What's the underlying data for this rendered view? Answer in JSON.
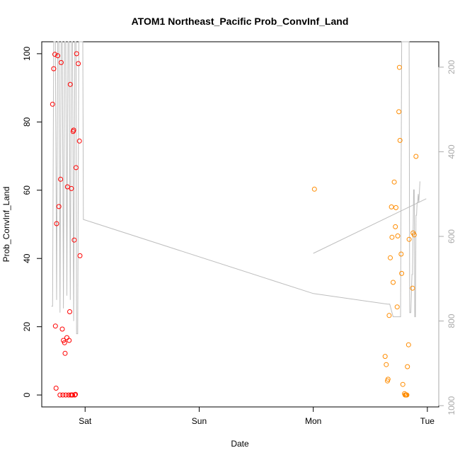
{
  "chart_data": {
    "type": "scatter",
    "title": "ATOM1 Northeast_Pacific Prob_ConvInf_Land",
    "xlabel": "Date",
    "ylabel": "Prob_ConvInf_Land",
    "x_ticks": [
      {
        "label": "Sat",
        "value": 1.0
      },
      {
        "label": "Sun",
        "value": 2.0
      },
      {
        "label": "Mon",
        "value": 3.0
      },
      {
        "label": "Tue",
        "value": 4.0
      }
    ],
    "xlim": [
      0.62,
      4.1
    ],
    "ylim": [
      -3.5,
      103.5
    ],
    "y_ticks": [
      0,
      20,
      40,
      60,
      80,
      100
    ],
    "y2_axis": {
      "ticks": [
        200,
        400,
        600,
        800,
        1000
      ],
      "lim": [
        1003,
        140
      ],
      "color": "#aaaaaa"
    },
    "grid": false,
    "colors": {
      "series_a": "#ff0000",
      "series_b": "#ff8c00",
      "line": "#bebebe"
    },
    "series": [
      {
        "color": "#ff0000",
        "points": [
          [
            0.715,
            85.2
          ],
          [
            0.725,
            95.6
          ],
          [
            0.735,
            99.8
          ],
          [
            0.74,
            20.2
          ],
          [
            0.745,
            2.0
          ],
          [
            0.75,
            50.2
          ],
          [
            0.76,
            99.4
          ],
          [
            0.77,
            55.2
          ],
          [
            0.78,
            0.0
          ],
          [
            0.785,
            63.2
          ],
          [
            0.79,
            97.4
          ],
          [
            0.8,
            19.3
          ],
          [
            0.805,
            0.0
          ],
          [
            0.81,
            16.0
          ],
          [
            0.82,
            15.3
          ],
          [
            0.825,
            12.2
          ],
          [
            0.83,
            0.0
          ],
          [
            0.84,
            16.8
          ],
          [
            0.845,
            61.0
          ],
          [
            0.855,
            0.0
          ],
          [
            0.86,
            16.0
          ],
          [
            0.865,
            24.4
          ],
          [
            0.87,
            91.0
          ],
          [
            0.875,
            0.0
          ],
          [
            0.88,
            60.5
          ],
          [
            0.885,
            0.0
          ],
          [
            0.89,
            0.0
          ],
          [
            0.895,
            77.2
          ],
          [
            0.9,
            77.6
          ],
          [
            0.905,
            45.4
          ],
          [
            0.91,
            0.0
          ],
          [
            0.915,
            0.2
          ],
          [
            0.92,
            66.6
          ],
          [
            0.925,
            100.0
          ],
          [
            0.94,
            97.1
          ],
          [
            0.95,
            74.4
          ],
          [
            0.955,
            40.8
          ]
        ]
      },
      {
        "color": "#ff8c00",
        "points": [
          [
            3.01,
            60.3
          ],
          [
            3.63,
            11.3
          ],
          [
            3.64,
            8.9
          ],
          [
            3.65,
            4.1
          ],
          [
            3.655,
            4.6
          ],
          [
            3.665,
            23.3
          ],
          [
            3.675,
            40.2
          ],
          [
            3.685,
            55.1
          ],
          [
            3.69,
            46.2
          ],
          [
            3.7,
            33.0
          ],
          [
            3.71,
            62.4
          ],
          [
            3.72,
            49.3
          ],
          [
            3.725,
            54.9
          ],
          [
            3.735,
            25.8
          ],
          [
            3.74,
            46.6
          ],
          [
            3.75,
            83.0
          ],
          [
            3.755,
            96.0
          ],
          [
            3.76,
            74.6
          ],
          [
            3.77,
            41.3
          ],
          [
            3.775,
            35.6
          ],
          [
            3.785,
            3.1
          ],
          [
            3.8,
            0.4
          ],
          [
            3.805,
            0.0
          ],
          [
            3.81,
            0.0
          ],
          [
            3.815,
            0.0
          ],
          [
            3.82,
            0.0
          ],
          [
            3.825,
            8.3
          ],
          [
            3.835,
            14.7
          ],
          [
            3.84,
            45.6
          ],
          [
            3.87,
            31.3
          ],
          [
            3.875,
            47.5
          ],
          [
            3.885,
            46.9
          ],
          [
            3.9,
            69.9
          ]
        ]
      }
    ],
    "line_y2": [
      [
        0.705,
        765
      ],
      [
        0.715,
        765
      ],
      [
        0.725,
        140
      ],
      [
        0.74,
        140
      ],
      [
        0.75,
        750
      ],
      [
        0.76,
        140
      ],
      [
        0.77,
        140
      ],
      [
        0.78,
        780
      ],
      [
        0.79,
        140
      ],
      [
        0.8,
        140
      ],
      [
        0.81,
        770
      ],
      [
        0.82,
        140
      ],
      [
        0.83,
        140
      ],
      [
        0.84,
        740
      ],
      [
        0.85,
        140
      ],
      [
        0.86,
        140
      ],
      [
        0.87,
        750
      ],
      [
        0.88,
        140
      ],
      [
        0.89,
        140
      ],
      [
        0.9,
        800
      ],
      [
        0.91,
        140
      ],
      [
        0.92,
        140
      ],
      [
        0.925,
        830
      ],
      [
        0.935,
        830
      ],
      [
        0.945,
        140
      ],
      [
        0.955,
        140
      ],
      [
        0.965,
        140
      ],
      [
        0.98,
        140
      ],
      [
        0.985,
        560
      ],
      [
        3.0,
        735
      ],
      [
        3.0,
        735
      ],
      [
        3.65,
        760
      ],
      [
        3.67,
        760
      ],
      [
        3.7,
        790
      ],
      [
        3.72,
        790
      ],
      [
        3.735,
        790
      ],
      [
        3.75,
        790
      ],
      [
        3.765,
        790
      ],
      [
        3.775,
        140
      ],
      [
        3.8,
        140
      ],
      [
        3.82,
        140
      ],
      [
        3.84,
        140
      ],
      [
        3.845,
        780
      ],
      [
        3.855,
        780
      ],
      [
        3.865,
        690
      ],
      [
        3.87,
        690
      ],
      [
        3.88,
        490
      ],
      [
        3.885,
        490
      ],
      [
        3.89,
        790
      ],
      [
        3.895,
        790
      ],
      [
        3.9,
        550
      ],
      [
        3.905,
        550
      ],
      [
        3.91,
        520
      ],
      [
        3.915,
        520
      ],
      [
        3.92,
        500
      ],
      [
        3.925,
        520
      ],
      [
        3.935,
        470
      ]
    ],
    "line_y2_tail": [
      [
        3.0,
        640
      ],
      [
        3.99,
        511
      ]
    ]
  }
}
